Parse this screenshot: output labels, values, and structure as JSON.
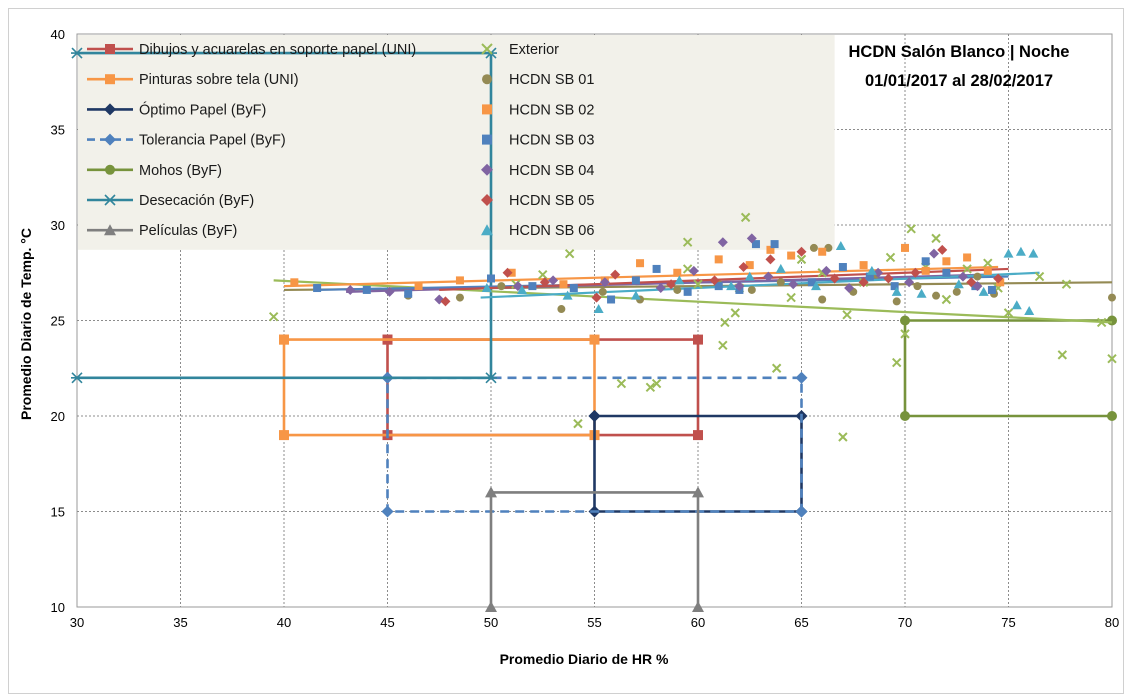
{
  "chart_data": {
    "type": "scatter",
    "title_line1": "HCDN Salón Blanco | Noche",
    "title_line2": "01/01/2017 al 28/02/2017",
    "xlabel": "Promedio Diario de HR %",
    "ylabel": "Promedio Diario de Temp. °C",
    "xlim": [
      30,
      80
    ],
    "ylim": [
      10,
      40
    ],
    "xticks": [
      30,
      35,
      40,
      45,
      50,
      55,
      60,
      65,
      70,
      75,
      80
    ],
    "yticks": [
      10,
      15,
      20,
      25,
      30,
      35,
      40
    ],
    "grid": true,
    "legend_position": "top-left",
    "zones": [
      {
        "name": "Dibujos y acuarelas en soporte papel (UNI)",
        "color": "#c0504d",
        "marker": "square",
        "dash": false,
        "points": [
          [
            45,
            24
          ],
          [
            60,
            24
          ],
          [
            60,
            19
          ],
          [
            45,
            19
          ],
          [
            45,
            24
          ]
        ]
      },
      {
        "name": "Pinturas sobre tela (UNI)",
        "color": "#f79646",
        "marker": "square",
        "dash": false,
        "points": [
          [
            40,
            24
          ],
          [
            55,
            24
          ],
          [
            55,
            19
          ],
          [
            40,
            19
          ],
          [
            40,
            24
          ]
        ]
      },
      {
        "name": "Óptimo Papel (ByF)",
        "color": "#1f3864",
        "marker": "diamond",
        "dash": false,
        "points": [
          [
            55,
            20
          ],
          [
            65,
            20
          ],
          [
            65,
            15
          ],
          [
            55,
            15
          ],
          [
            55,
            20
          ]
        ]
      },
      {
        "name": "Tolerancia Papel (ByF)",
        "color": "#4f81bd",
        "marker": "diamond",
        "dash": true,
        "points": [
          [
            45,
            22
          ],
          [
            65,
            22
          ],
          [
            65,
            15
          ],
          [
            45,
            15
          ],
          [
            45,
            22
          ]
        ]
      },
      {
        "name": "Mohos (ByF)",
        "color": "#77933c",
        "marker": "circle",
        "dash": false,
        "points": [
          [
            80,
            25
          ],
          [
            70,
            25
          ],
          [
            70,
            20
          ],
          [
            80,
            20
          ]
        ]
      },
      {
        "name": "Desecación (ByF)",
        "color": "#31859c",
        "marker": "asterisk",
        "dash": false,
        "points": [
          [
            30,
            22
          ],
          [
            50,
            22
          ],
          [
            50,
            39
          ],
          [
            30,
            39
          ]
        ]
      },
      {
        "name": "Películas (ByF)",
        "color": "#7f7f7f",
        "marker": "triangle",
        "dash": false,
        "points": [
          [
            50,
            10
          ],
          [
            50,
            16
          ],
          [
            60,
            16
          ],
          [
            60,
            10
          ]
        ]
      }
    ],
    "series": [
      {
        "name": "Exterior",
        "marker": "x",
        "color": "#9bbb59",
        "points": [
          [
            39.5,
            25.2
          ],
          [
            54.2,
            19.6
          ],
          [
            56.3,
            21.7
          ],
          [
            57.7,
            21.5
          ],
          [
            58,
            21.7
          ],
          [
            59.5,
            27.7
          ],
          [
            60,
            26.9
          ],
          [
            61.2,
            23.7
          ],
          [
            61.3,
            24.9
          ],
          [
            61.8,
            25.4
          ],
          [
            62,
            26.7
          ],
          [
            62.3,
            30.4
          ],
          [
            63.8,
            22.5
          ],
          [
            65,
            28.2
          ],
          [
            66,
            27.5
          ],
          [
            67,
            18.9
          ],
          [
            67.2,
            25.3
          ],
          [
            68,
            27
          ],
          [
            69.3,
            28.3
          ],
          [
            69.6,
            22.8
          ],
          [
            70,
            24.3
          ],
          [
            70.3,
            29.8
          ],
          [
            71,
            27.8
          ],
          [
            71.5,
            29.3
          ],
          [
            72,
            26.1
          ],
          [
            73,
            27.7
          ],
          [
            74,
            28
          ],
          [
            74.5,
            26.7
          ],
          [
            75,
            25.4
          ],
          [
            76.5,
            27.3
          ],
          [
            77.6,
            23.2
          ],
          [
            77.8,
            26.9
          ],
          [
            79.5,
            24.9
          ],
          [
            80,
            23
          ],
          [
            51.2,
            26.9
          ],
          [
            52.5,
            27.4
          ],
          [
            53.8,
            28.5
          ],
          [
            59.5,
            29.1
          ],
          [
            64.5,
            26.2
          ]
        ]
      },
      {
        "name": "HCDN SB 01",
        "marker": "circle",
        "color": "#948a54",
        "points": [
          [
            46,
            26.3
          ],
          [
            48.5,
            26.2
          ],
          [
            50.5,
            26.8
          ],
          [
            53.4,
            25.6
          ],
          [
            55.4,
            26.5
          ],
          [
            57.2,
            26.1
          ],
          [
            59,
            26.6
          ],
          [
            61,
            26.9
          ],
          [
            62.6,
            26.6
          ],
          [
            64,
            27
          ],
          [
            65.6,
            28.8
          ],
          [
            66.3,
            28.8
          ],
          [
            67.5,
            26.5
          ],
          [
            68.6,
            27.4
          ],
          [
            69.6,
            26
          ],
          [
            70.6,
            26.8
          ],
          [
            71.5,
            26.3
          ],
          [
            72.5,
            26.5
          ],
          [
            73.5,
            27.3
          ],
          [
            74.3,
            26.4
          ],
          [
            80,
            26.2
          ],
          [
            66,
            26.1
          ]
        ]
      },
      {
        "name": "HCDN SB 02",
        "marker": "square",
        "color": "#f79646",
        "points": [
          [
            40.5,
            27
          ],
          [
            46.5,
            26.8
          ],
          [
            48.5,
            27.1
          ],
          [
            51,
            27.5
          ],
          [
            53.5,
            26.9
          ],
          [
            55.5,
            27.1
          ],
          [
            57.2,
            28
          ],
          [
            59,
            27.5
          ],
          [
            61,
            28.2
          ],
          [
            62.5,
            27.9
          ],
          [
            63.5,
            28.7
          ],
          [
            64.5,
            28.4
          ],
          [
            66,
            28.6
          ],
          [
            68,
            27.9
          ],
          [
            70,
            28.8
          ],
          [
            71,
            27.6
          ],
          [
            72,
            28.1
          ],
          [
            73,
            28.3
          ],
          [
            74,
            27.6
          ],
          [
            74.6,
            27
          ]
        ]
      },
      {
        "name": "HCDN SB 03",
        "marker": "square",
        "color": "#4f81bd",
        "points": [
          [
            41.6,
            26.7
          ],
          [
            44,
            26.6
          ],
          [
            46,
            26.4
          ],
          [
            50,
            27.2
          ],
          [
            52,
            26.8
          ],
          [
            54,
            26.7
          ],
          [
            55.8,
            26.1
          ],
          [
            57,
            27.1
          ],
          [
            58,
            27.7
          ],
          [
            59.5,
            26.5
          ],
          [
            61,
            26.8
          ],
          [
            62,
            26.6
          ],
          [
            62.8,
            29
          ],
          [
            63.7,
            29
          ],
          [
            65.5,
            27
          ],
          [
            67,
            27.8
          ],
          [
            68.3,
            27.3
          ],
          [
            69.5,
            26.8
          ],
          [
            71,
            28.1
          ],
          [
            72,
            27.5
          ],
          [
            73.4,
            26.8
          ],
          [
            74.2,
            26.6
          ]
        ]
      },
      {
        "name": "HCDN SB 04",
        "marker": "diamond",
        "color": "#8064a2",
        "points": [
          [
            43.2,
            26.6
          ],
          [
            45.1,
            26.5
          ],
          [
            47.5,
            26.1
          ],
          [
            51.3,
            26.8
          ],
          [
            53,
            27.1
          ],
          [
            55.5,
            27
          ],
          [
            58.2,
            26.7
          ],
          [
            59.8,
            27.6
          ],
          [
            61.2,
            29.1
          ],
          [
            62,
            26.8
          ],
          [
            62.6,
            29.3
          ],
          [
            63.4,
            27.3
          ],
          [
            64.6,
            26.9
          ],
          [
            66.2,
            27.6
          ],
          [
            67.3,
            26.7
          ],
          [
            68.7,
            27.5
          ],
          [
            70.2,
            27
          ],
          [
            71.4,
            28.5
          ],
          [
            72.8,
            27.3
          ],
          [
            73.5,
            26.8
          ]
        ]
      },
      {
        "name": "HCDN SB 05",
        "marker": "diamond",
        "color": "#c0504d",
        "points": [
          [
            47.8,
            26
          ],
          [
            50.8,
            27.5
          ],
          [
            52.6,
            27
          ],
          [
            55.1,
            26.2
          ],
          [
            56,
            27.4
          ],
          [
            58.7,
            26.9
          ],
          [
            60.8,
            27.1
          ],
          [
            62.2,
            27.8
          ],
          [
            63.5,
            28.2
          ],
          [
            65,
            28.6
          ],
          [
            66.6,
            27.2
          ],
          [
            68,
            27
          ],
          [
            69.2,
            27.2
          ],
          [
            70.5,
            27.5
          ],
          [
            71.8,
            28.7
          ],
          [
            73.2,
            27
          ],
          [
            74.5,
            27.2
          ]
        ]
      },
      {
        "name": "HCDN SB 06",
        "marker": "triangle",
        "color": "#4bacc6",
        "points": [
          [
            49.8,
            26.7
          ],
          [
            51.5,
            26.6
          ],
          [
            53.7,
            26.3
          ],
          [
            55.2,
            25.6
          ],
          [
            57,
            26.3
          ],
          [
            59.1,
            27.1
          ],
          [
            61.6,
            26.8
          ],
          [
            62.5,
            27.3
          ],
          [
            64,
            27.7
          ],
          [
            65.7,
            26.8
          ],
          [
            66.9,
            28.9
          ],
          [
            68.4,
            27.6
          ],
          [
            69.6,
            26.5
          ],
          [
            70.8,
            26.4
          ],
          [
            72.6,
            26.9
          ],
          [
            73.8,
            26.5
          ],
          [
            75,
            28.5
          ],
          [
            75.6,
            28.6
          ],
          [
            76.2,
            28.5
          ],
          [
            75.4,
            25.8
          ],
          [
            76,
            25.5
          ]
        ]
      }
    ],
    "trendlines": [
      {
        "color": "#9bbb59",
        "from": [
          39.5,
          27.1
        ],
        "to": [
          80,
          24.9
        ]
      },
      {
        "color": "#948a54",
        "from": [
          40,
          26.6
        ],
        "to": [
          80,
          27
        ]
      },
      {
        "color": "#f79646",
        "from": [
          40,
          26.8
        ],
        "to": [
          74.5,
          27.8
        ]
      },
      {
        "color": "#4f81bd",
        "from": [
          41.5,
          26.6
        ],
        "to": [
          75,
          27.3
        ]
      },
      {
        "color": "#8064a2",
        "from": [
          43,
          26.5
        ],
        "to": [
          74,
          27.4
        ]
      },
      {
        "color": "#c0504d",
        "from": [
          47.5,
          26.6
        ],
        "to": [
          75,
          27.7
        ]
      },
      {
        "color": "#4bacc6",
        "from": [
          49.5,
          26.2
        ],
        "to": [
          76.5,
          27.5
        ]
      }
    ]
  }
}
